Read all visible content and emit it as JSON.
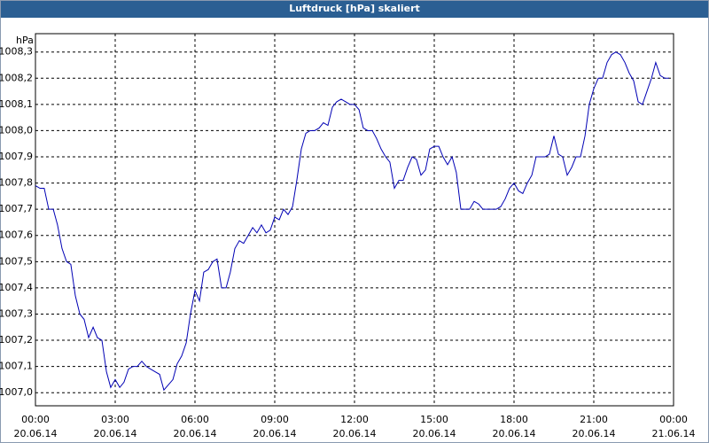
{
  "chart_data": {
    "type": "line",
    "title": "Luftdruck [hPa] skaliert",
    "y_label": "hPa",
    "xlim": [
      0,
      24
    ],
    "ylim": [
      1006.95,
      1008.37
    ],
    "grid": true,
    "xticks": [
      {
        "value": 0,
        "label": "00:00"
      },
      {
        "value": 3,
        "label": "03:00"
      },
      {
        "value": 6,
        "label": "06:00"
      },
      {
        "value": 9,
        "label": "09:00"
      },
      {
        "value": 12,
        "label": "12:00"
      },
      {
        "value": 15,
        "label": "15:00"
      },
      {
        "value": 18,
        "label": "18:00"
      },
      {
        "value": 21,
        "label": "21:00"
      },
      {
        "value": 24,
        "label": "00:00"
      }
    ],
    "xtick_dates": [
      "20.06.14",
      "20.06.14",
      "20.06.14",
      "20.06.14",
      "20.06.14",
      "20.06.14",
      "20.06.14",
      "20.06.14",
      "21.06.14"
    ],
    "yticks": [
      {
        "value": 1007.0,
        "label": "1007,0"
      },
      {
        "value": 1007.1,
        "label": "1007,1"
      },
      {
        "value": 1007.2,
        "label": "1007,2"
      },
      {
        "value": 1007.3,
        "label": "1007,3"
      },
      {
        "value": 1007.4,
        "label": "1007,4"
      },
      {
        "value": 1007.5,
        "label": "1007,5"
      },
      {
        "value": 1007.6,
        "label": "1007,6"
      },
      {
        "value": 1007.7,
        "label": "1007,7"
      },
      {
        "value": 1007.8,
        "label": "1007,8"
      },
      {
        "value": 1007.9,
        "label": "1007,9"
      },
      {
        "value": 1008.0,
        "label": "1008,0"
      },
      {
        "value": 1008.1,
        "label": "1008,1"
      },
      {
        "value": 1008.2,
        "label": "1008,2"
      },
      {
        "value": 1008.3,
        "label": "1008,3"
      }
    ],
    "series": [
      {
        "color": "#0000b4",
        "x": [
          0,
          0.17,
          0.33,
          0.5,
          0.67,
          0.83,
          1,
          1.17,
          1.33,
          1.5,
          1.67,
          1.83,
          2,
          2.17,
          2.33,
          2.5,
          2.67,
          2.83,
          3,
          3.17,
          3.33,
          3.5,
          3.67,
          3.83,
          4,
          4.17,
          4.33,
          4.5,
          4.67,
          4.83,
          5,
          5.17,
          5.33,
          5.5,
          5.67,
          5.83,
          6,
          6.17,
          6.33,
          6.5,
          6.67,
          6.83,
          7,
          7.17,
          7.33,
          7.5,
          7.67,
          7.83,
          8,
          8.17,
          8.33,
          8.5,
          8.67,
          8.83,
          9,
          9.17,
          9.33,
          9.5,
          9.67,
          9.83,
          10,
          10.17,
          10.33,
          10.5,
          10.67,
          10.83,
          11,
          11.17,
          11.33,
          11.5,
          11.67,
          11.83,
          12,
          12.17,
          12.33,
          12.5,
          12.67,
          12.83,
          13,
          13.17,
          13.33,
          13.5,
          13.67,
          13.83,
          14,
          14.17,
          14.33,
          14.5,
          14.67,
          14.83,
          15,
          15.17,
          15.33,
          15.5,
          15.67,
          15.83,
          16,
          16.17,
          16.33,
          16.5,
          16.67,
          16.83,
          17,
          17.17,
          17.33,
          17.5,
          17.67,
          17.83,
          18,
          18.17,
          18.33,
          18.5,
          18.67,
          18.83,
          19,
          19.17,
          19.33,
          19.5,
          19.67,
          19.83,
          20,
          20.17,
          20.33,
          20.5,
          20.67,
          20.83,
          21,
          21.17,
          21.33,
          21.5,
          21.67,
          21.83,
          22,
          22.17,
          22.33,
          22.5,
          22.67,
          22.83,
          23,
          23.17,
          23.33,
          23.5,
          23.67,
          23.83
        ],
        "values": [
          1007.79,
          1007.78,
          1007.78,
          1007.7,
          1007.7,
          1007.64,
          1007.55,
          1007.5,
          1007.49,
          1007.37,
          1007.3,
          1007.28,
          1007.21,
          1007.25,
          1007.21,
          1007.2,
          1007.08,
          1007.02,
          1007.05,
          1007.02,
          1007.04,
          1007.09,
          1007.1,
          1007.1,
          1007.12,
          1007.1,
          1007.09,
          1007.08,
          1007.07,
          1007.01,
          1007.03,
          1007.05,
          1007.11,
          1007.14,
          1007.19,
          1007.3,
          1007.39,
          1007.35,
          1007.46,
          1007.47,
          1007.5,
          1007.51,
          1007.4,
          1007.4,
          1007.46,
          1007.55,
          1007.58,
          1007.57,
          1007.6,
          1007.63,
          1007.61,
          1007.64,
          1007.61,
          1007.62,
          1007.67,
          1007.66,
          1007.7,
          1007.68,
          1007.71,
          1007.81,
          1007.93,
          1007.99,
          1008.0,
          1008.0,
          1008.01,
          1008.03,
          1008.02,
          1008.09,
          1008.11,
          1008.12,
          1008.11,
          1008.1,
          1008.1,
          1008.08,
          1008.01,
          1008.0,
          1008.0,
          1007.97,
          1007.93,
          1007.9,
          1007.88,
          1007.78,
          1007.81,
          1007.81,
          1007.86,
          1007.9,
          1007.89,
          1007.83,
          1007.85,
          1007.93,
          1007.94,
          1007.94,
          1007.9,
          1007.87,
          1007.9,
          1007.84,
          1007.7,
          1007.7,
          1007.7,
          1007.73,
          1007.72,
          1007.7,
          1007.7,
          1007.7,
          1007.7,
          1007.71,
          1007.74,
          1007.78,
          1007.8,
          1007.77,
          1007.76,
          1007.8,
          1007.83,
          1007.9,
          1007.9,
          1007.9,
          1007.91,
          1007.98,
          1007.91,
          1007.9,
          1007.83,
          1007.86,
          1007.9,
          1007.9,
          1007.98,
          1008.1,
          1008.16,
          1008.2,
          1008.2,
          1008.26,
          1008.29,
          1008.3,
          1008.29,
          1008.26,
          1008.22,
          1008.19,
          1008.11,
          1008.1,
          1008.15,
          1008.2,
          1008.26,
          1008.21,
          1008.2,
          1008.2
        ]
      }
    ]
  }
}
